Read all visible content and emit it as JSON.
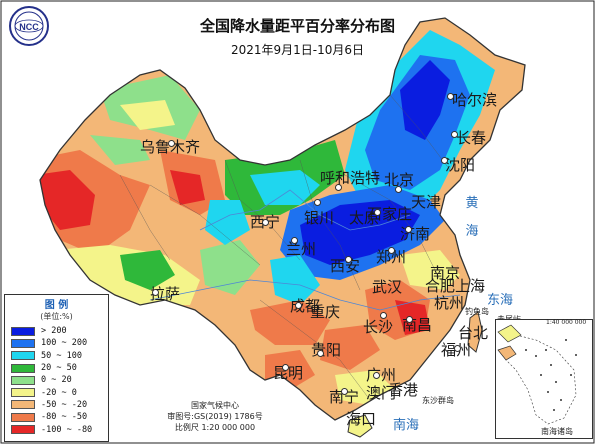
{
  "map": {
    "title": "全国降水量距平百分率分布图",
    "subtitle": "2021年9月1日-10月6日",
    "logo_text": "NCC",
    "logo_top_text": "中 国",
    "cities": {
      "urumqi": "乌鲁木齐",
      "harbin": "哈尔滨",
      "changchun": "长春",
      "shenyang": "沈阳",
      "hohhot": "呼和浩特",
      "beijing": "北京",
      "tianjin": "天津",
      "shijiazhuang": "石家庄",
      "taiyuan": "太原",
      "jinan": "济南",
      "yinchuan": "银川",
      "xining": "西宁",
      "lanzhou": "兰州",
      "xian": "西安",
      "zhengzhou": "郑州",
      "hefei": "合肥",
      "nanjing": "南京",
      "shanghai": "上海",
      "hangzhou": "杭州",
      "wuhan": "武汉",
      "chengdu": "成都",
      "chongqing": "重庆",
      "lhasa": "拉萨",
      "changsha": "长沙",
      "nanchang": "南昌",
      "fuzhou": "福州",
      "taibei": "台北",
      "guiyang": "贵阳",
      "kunming": "昆明",
      "nanning": "南宁",
      "guangzhou": "广州",
      "hongkong": "香港",
      "macau": "澳门",
      "haikou": "海口"
    },
    "seas": {
      "yellow_sea": "黄海",
      "east_sea": "东海",
      "south_sea": "南海",
      "south_sea_inset": "南海"
    },
    "islands": {
      "diaoyu": "钓鱼岛",
      "chiwei": "赤尾屿",
      "dongsha": "东沙群岛",
      "inset_label": "南海诸岛",
      "inset_scale": "1:40 000 000"
    }
  },
  "legend": {
    "title": "图 例",
    "unit": "(单位:%)",
    "items": [
      {
        "label": "> 200",
        "color": "#0a1de0"
      },
      {
        "label": "100 ~ 200",
        "color": "#1e72f0"
      },
      {
        "label": "50 ~ 100",
        "color": "#1fd6ef"
      },
      {
        "label": "20 ~ 50",
        "color": "#2fb83a"
      },
      {
        "label": "0 ~ 20",
        "color": "#8ee08b"
      },
      {
        "label": "-20 ~ 0",
        "color": "#f4f48a"
      },
      {
        "label": "-50 ~ -20",
        "color": "#f3b777"
      },
      {
        "label": "-80 ~ -50",
        "color": "#ef7a4a"
      },
      {
        "label": "-100 ~ -80",
        "color": "#e52727"
      }
    ]
  },
  "credits": {
    "org": "国家气候中心",
    "approval": "审图号:GS(2019) 1786号",
    "scale": "比例尺 1:20 000 000"
  }
}
